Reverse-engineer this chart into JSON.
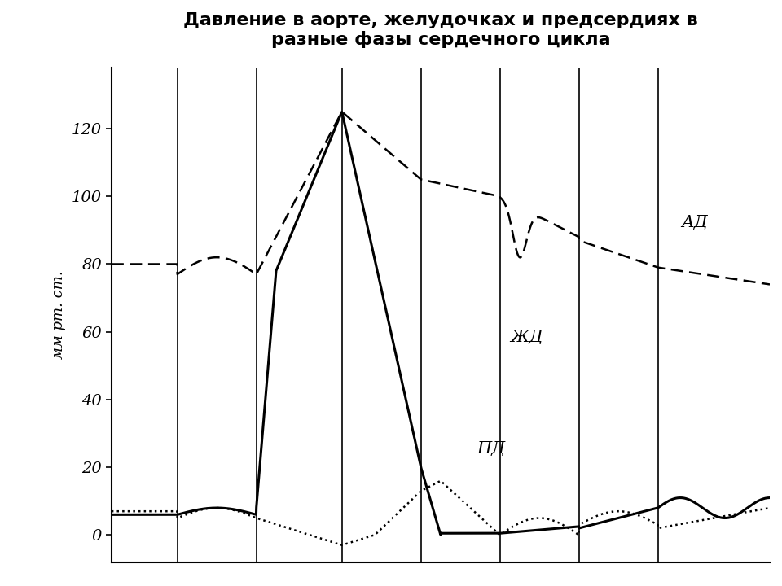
{
  "title": "Давление в аорте, желудочках и предсердиях в\nразные фазы сердечного цикла",
  "ylabel": "мм рт. ст.",
  "yticks": [
    0,
    20,
    40,
    60,
    80,
    100,
    120
  ],
  "ylim": [
    -8,
    138
  ],
  "xlim": [
    0,
    10
  ],
  "vlines": [
    1.0,
    2.2,
    3.5,
    4.7,
    5.9,
    7.1,
    8.3
  ],
  "label_AD": "АД",
  "label_ZhD": "ЖД",
  "label_PD": "ПД",
  "background_color": "#ffffff",
  "line_color": "#000000",
  "title_fontsize": 16,
  "ylabel_fontsize": 13
}
